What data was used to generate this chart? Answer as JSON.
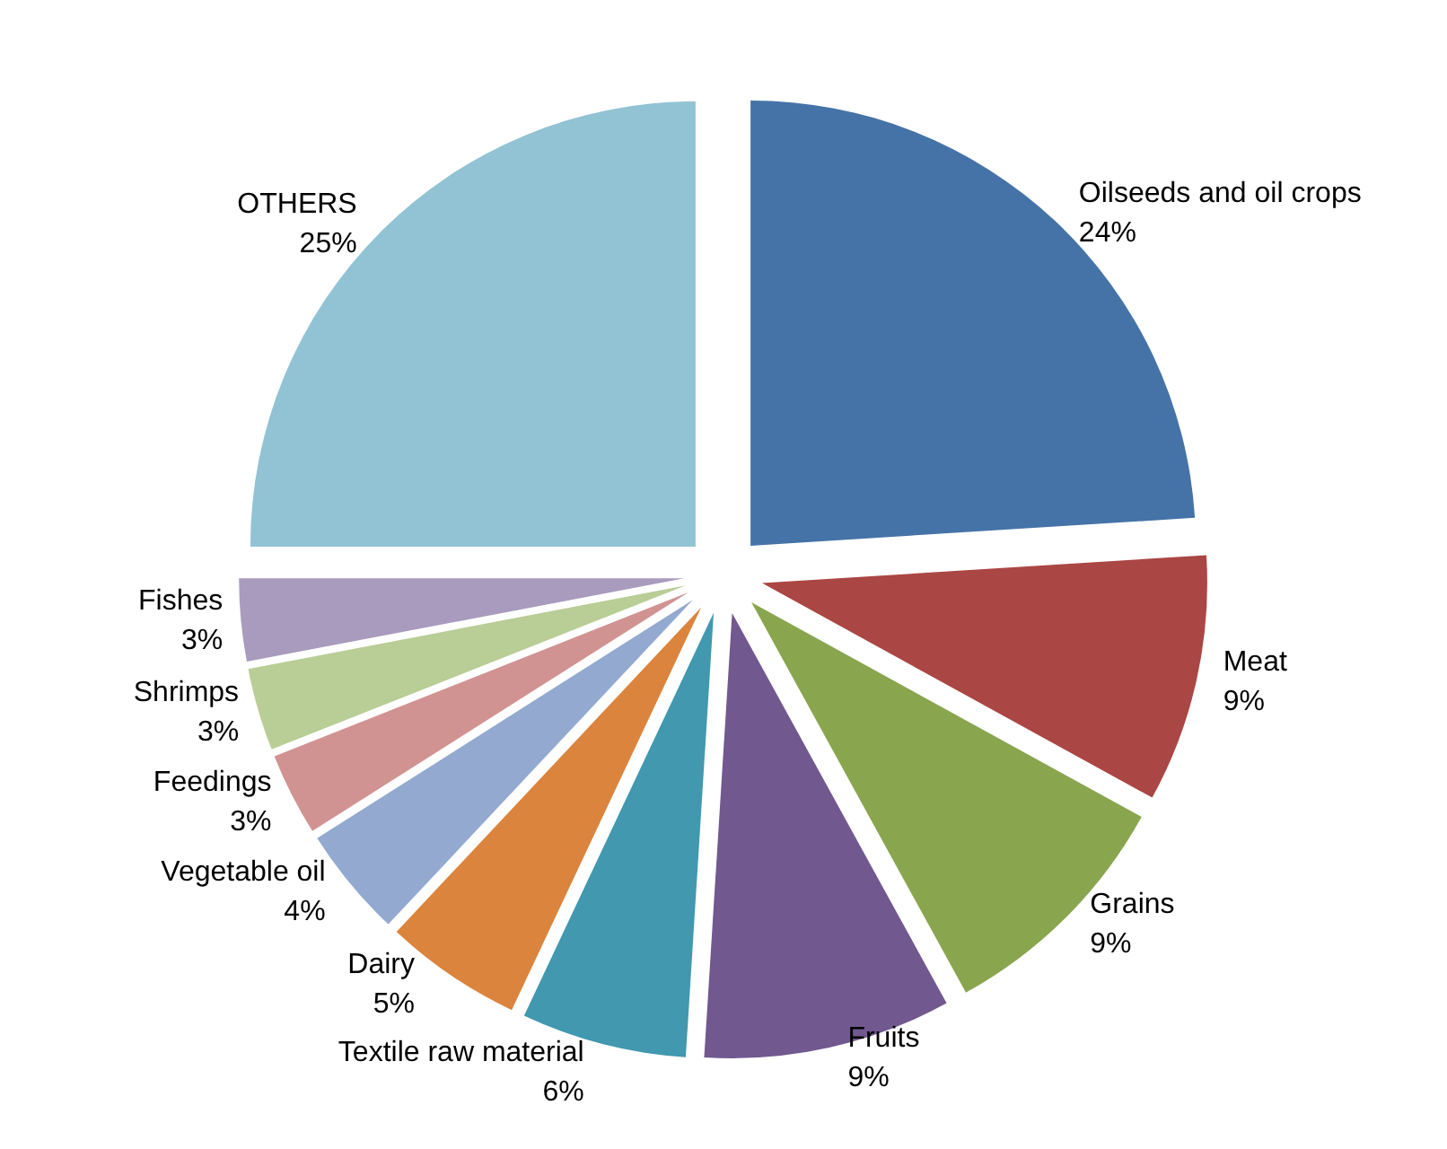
{
  "chart_data": {
    "type": "pie",
    "categories": [
      "Oilseeds and oil crops",
      "Meat",
      "Grains",
      "Fruits",
      "Textile raw material",
      "Dairy",
      "Vegetable oil",
      "Feedings",
      "Shrimps",
      "Fishes",
      "OTHERS"
    ],
    "values": [
      24,
      9,
      9,
      9,
      6,
      5,
      4,
      3,
      3,
      3,
      25
    ],
    "colors": [
      "#4573a7",
      "#aa4644",
      "#89a54e",
      "#71588f",
      "#4198af",
      "#db843d",
      "#93a9cf",
      "#d19392",
      "#b9cd96",
      "#a99bbd",
      "#92c3d4"
    ],
    "value_labels": [
      "24%",
      "9%",
      "9%",
      "9%",
      "6%",
      "5%",
      "4%",
      "3%",
      "3%",
      "3%",
      "25%"
    ],
    "legend": false
  }
}
